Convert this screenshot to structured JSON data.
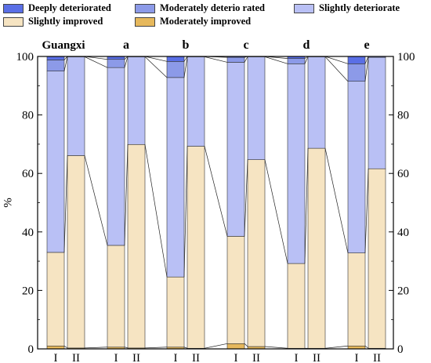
{
  "chart_data": {
    "type": "bar",
    "stacked": true,
    "ylabel": "%",
    "ylim": [
      0,
      100
    ],
    "yticks": [
      0,
      20,
      40,
      60,
      80,
      100
    ],
    "secondary_y_axis": true,
    "connector_lines": true,
    "legend": [
      {
        "name": "Deeply deteriorated",
        "color": "#5a6fe6"
      },
      {
        "name": "Moderately deterio rated",
        "color": "#8c9ae8"
      },
      {
        "name": "Slightly deteriorate",
        "color": "#b9c0f5"
      },
      {
        "name": "Slightly improved",
        "color": "#f6e4c2"
      },
      {
        "name": "Moderately improved",
        "color": "#e6b85c"
      }
    ],
    "series_order": [
      "Moderately improved",
      "Slightly improved",
      "Slightly deteriorate",
      "Moderately deterio rated",
      "Deeply deteriorated"
    ],
    "groups": [
      {
        "title": "Guangxi",
        "bars": [
          {
            "label": "I",
            "values": [
              1.0,
              32.0,
              62.0,
              3.8,
              1.2
            ]
          },
          {
            "label": "II",
            "values": [
              0.3,
              65.8,
              33.8,
              0.1,
              0.0
            ]
          }
        ]
      },
      {
        "title": "a",
        "bars": [
          {
            "label": "I",
            "values": [
              0.6,
              34.8,
              60.8,
              2.8,
              1.0
            ]
          },
          {
            "label": "II",
            "values": [
              0.3,
              69.6,
              30.0,
              0.1,
              0.0
            ]
          }
        ]
      },
      {
        "title": "b",
        "bars": [
          {
            "label": "I",
            "values": [
              0.6,
              24.0,
              68.2,
              5.5,
              1.7
            ]
          },
          {
            "label": "II",
            "values": [
              0.2,
              69.1,
              30.6,
              0.1,
              0.0
            ]
          }
        ]
      },
      {
        "title": "c",
        "bars": [
          {
            "label": "I",
            "values": [
              1.8,
              36.7,
              59.5,
              1.7,
              0.3
            ]
          },
          {
            "label": "II",
            "values": [
              0.8,
              63.9,
              35.2,
              0.1,
              0.0
            ]
          }
        ]
      },
      {
        "title": "d",
        "bars": [
          {
            "label": "I",
            "values": [
              0.2,
              29.0,
              68.3,
              1.8,
              0.7
            ]
          },
          {
            "label": "II",
            "values": [
              0.2,
              68.4,
              31.3,
              0.1,
              0.0
            ]
          }
        ]
      },
      {
        "title": "e",
        "bars": [
          {
            "label": "I",
            "values": [
              1.0,
              31.8,
              58.7,
              6.0,
              2.5
            ]
          },
          {
            "label": "II",
            "values": [
              0.2,
              61.4,
              38.1,
              0.3,
              0.0
            ]
          }
        ]
      }
    ]
  }
}
